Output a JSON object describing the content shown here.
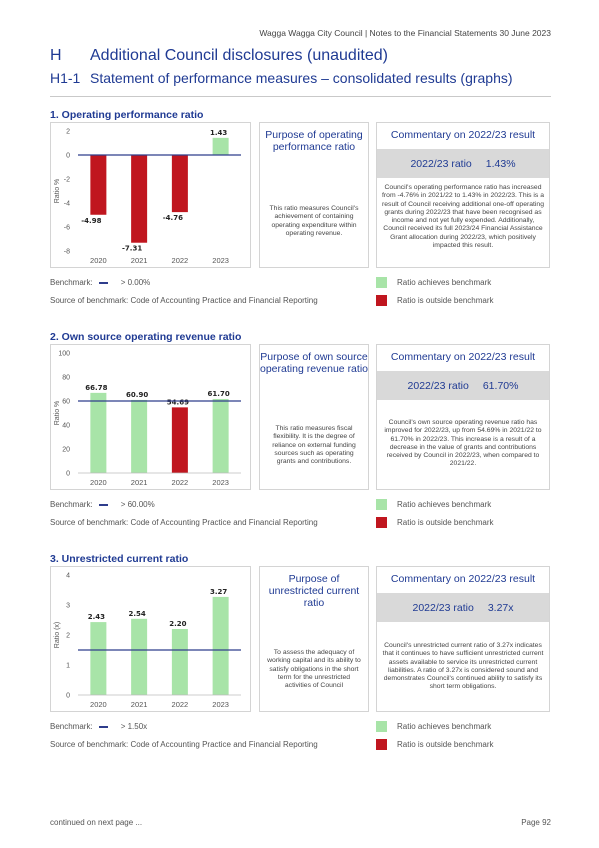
{
  "header": {
    "running_title": "Wagga Wagga City Council | Notes to the Financial Statements 30 June 2023"
  },
  "section": {
    "code": "H",
    "title": "Additional Council disclosures (unaudited)"
  },
  "subsection": {
    "code": "H1-1",
    "title": "Statement of performance measures – consolidated results (graphs)"
  },
  "colors": {
    "achieves": "#a8e4a8",
    "outside": "#c0161f",
    "benchmark_line": "#2f3d8c",
    "heading": "#1f3a93"
  },
  "legend": {
    "achieves_label": "Ratio achieves benchmark",
    "outside_label": "Ratio is outside benchmark"
  },
  "ratios": [
    {
      "title": "1. Operating performance ratio",
      "purpose_title": "Purpose of operating performance ratio",
      "purpose_text": "This ratio measures Council's achievement of containing operating expenditure within operating revenue.",
      "commentary_title": "Commentary on 2022/23 result",
      "ratio_label": "2022/23 ratio",
      "ratio_value": "1.43%",
      "commentary_text": "Council's operating performance ratio has increased from -4.76% in 2021/22 to 1.43% in 2022/23. This is a result of Council receiving additional one-off operating grants during 2022/23 that have been recognised as income and not yet fully expended. Additionally, Council received its full 2023/24 Financial Assistance Grant allocation during 2022/23, which positively impacted this result.",
      "benchmark_label": "Benchmark:",
      "benchmark_value": "> 0.00%",
      "source": "Source of benchmark: Code of Accounting Practice and Financial Reporting"
    },
    {
      "title": "2. Own source operating revenue ratio",
      "purpose_title": "Purpose of own source operating revenue ratio",
      "purpose_text": "This ratio measures fiscal flexibility. It is the degree of reliance on external funding sources such as operating grants and contributions.",
      "commentary_title": "Commentary on 2022/23 result",
      "ratio_label": "2022/23 ratio",
      "ratio_value": "61.70%",
      "commentary_text": "Council's own source operating revenue ratio has improved for 2022/23, up from 54.69% in 2021/22 to 61.70% in 2022/23. This increase is a result of a decrease in the value of grants and contributions received by Council in 2022/23, when compared to 2021/22.",
      "benchmark_label": "Benchmark:",
      "benchmark_value": "> 60.00%",
      "source": "Source of benchmark: Code of Accounting Practice and Financial Reporting"
    },
    {
      "title": "3. Unrestricted current ratio",
      "purpose_title": "Purpose of unrestricted current ratio",
      "purpose_text": "To assess the adequacy of working capital and its ability to satisfy obligations in the short term for the unrestricted activities of Council",
      "commentary_title": "Commentary on 2022/23 result",
      "ratio_label": "2022/23 ratio",
      "ratio_value": "3.27x",
      "commentary_text": "Council's unrestricted current ratio of 3.27x indicates that it continues to have sufficient unrestricted current assets available to service its unrestricted current liabilities. A ratio of 3.27x is considered sound and demonstrates Council's continued ability to satisfy its short term obligations.",
      "benchmark_label": "Benchmark:",
      "benchmark_value": "> 1.50x",
      "source": "Source of benchmark: Code of Accounting Practice and Financial Reporting"
    }
  ],
  "chart_data": [
    {
      "type": "bar",
      "title": "",
      "ylabel": "Ratio %",
      "categories": [
        "2020",
        "2021",
        "2022",
        "2023"
      ],
      "values": [
        -4.98,
        -7.31,
        -4.76,
        1.43
      ],
      "value_labels": [
        "-4.98",
        "-7.31",
        "-4.76",
        "1.43"
      ],
      "bar_status": [
        "outside",
        "outside",
        "outside",
        "achieves"
      ],
      "benchmark": 0,
      "ylim": [
        -8,
        2
      ],
      "yticks": [
        -8,
        -6,
        -4,
        -2,
        0,
        2
      ],
      "ytick_labels": [
        "-8",
        "-6",
        "-4",
        "-2",
        "0",
        "2"
      ],
      "grid": false
    },
    {
      "type": "bar",
      "title": "",
      "ylabel": "Ratio %",
      "categories": [
        "2020",
        "2021",
        "2022",
        "2023"
      ],
      "values": [
        66.78,
        60.9,
        54.69,
        61.7
      ],
      "value_labels": [
        "66.78",
        "60.90",
        "54.69",
        "61.70"
      ],
      "bar_status": [
        "achieves",
        "achieves",
        "outside",
        "achieves"
      ],
      "benchmark": 60,
      "ylim": [
        0,
        100
      ],
      "yticks": [
        0,
        20,
        40,
        60,
        80,
        100
      ],
      "ytick_labels": [
        "0",
        "20",
        "40",
        "60",
        "80",
        "100"
      ],
      "grid": false
    },
    {
      "type": "bar",
      "title": "",
      "ylabel": "Ratio (x)",
      "categories": [
        "2020",
        "2021",
        "2022",
        "2023"
      ],
      "values": [
        2.43,
        2.54,
        2.2,
        3.27
      ],
      "value_labels": [
        "2.43",
        "2.54",
        "2.20",
        "3.27"
      ],
      "bar_status": [
        "achieves",
        "achieves",
        "achieves",
        "achieves"
      ],
      "benchmark": 1.5,
      "ylim": [
        0,
        4
      ],
      "yticks": [
        0,
        1,
        2,
        3,
        4
      ],
      "ytick_labels": [
        "0",
        "1",
        "2",
        "3",
        "4"
      ],
      "grid": false
    }
  ],
  "footer": {
    "continued": "continued on next page ...",
    "page": "Page 92"
  }
}
